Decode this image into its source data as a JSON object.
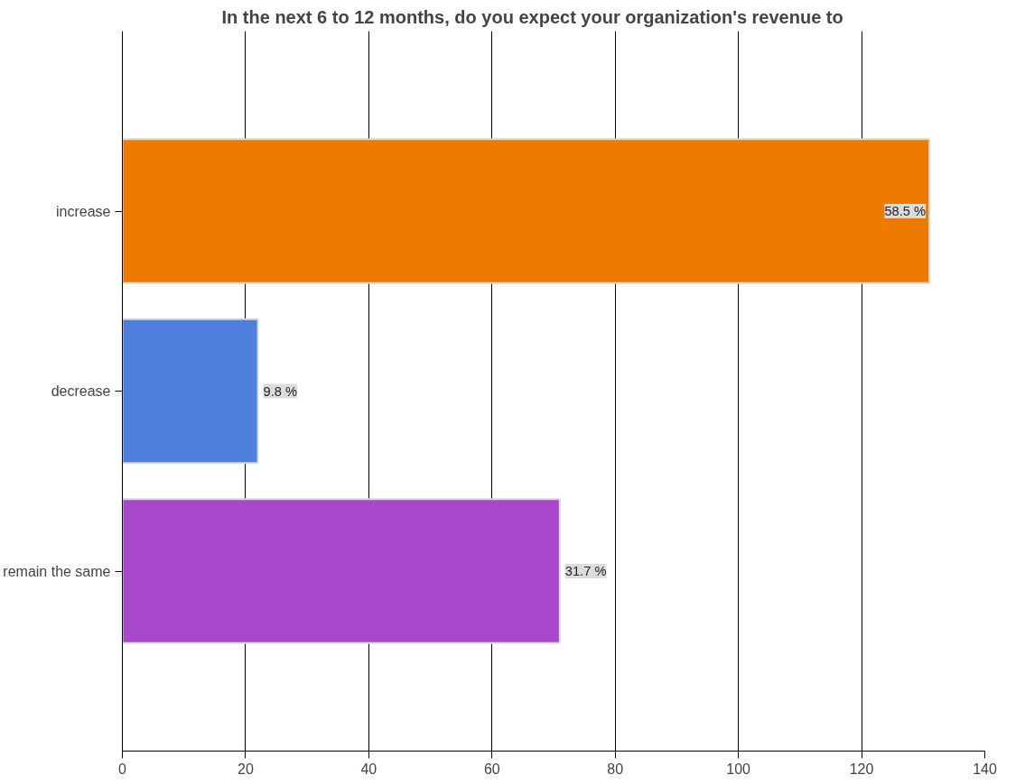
{
  "chart_data": {
    "type": "bar",
    "orientation": "horizontal",
    "title": "In the next 6 to 12 months, do you expect your organization's revenue to",
    "categories": [
      "increase",
      "decrease",
      "remain the same"
    ],
    "values": [
      131,
      22,
      71
    ],
    "colors": [
      "#ee7a00",
      "#4f7fdc",
      "#a848cc"
    ],
    "annotations": [
      {
        "text": "58.5 %",
        "x": 131,
        "y": "increase"
      },
      {
        "text": "9.8 %",
        "x": 22,
        "y": "decrease"
      },
      {
        "text": "31.7 %",
        "x": 71,
        "y": "remain the same"
      }
    ],
    "xlim": [
      0,
      140
    ],
    "xticks": [
      0,
      20,
      40,
      60,
      80,
      100,
      120,
      140
    ],
    "grid": "x"
  }
}
